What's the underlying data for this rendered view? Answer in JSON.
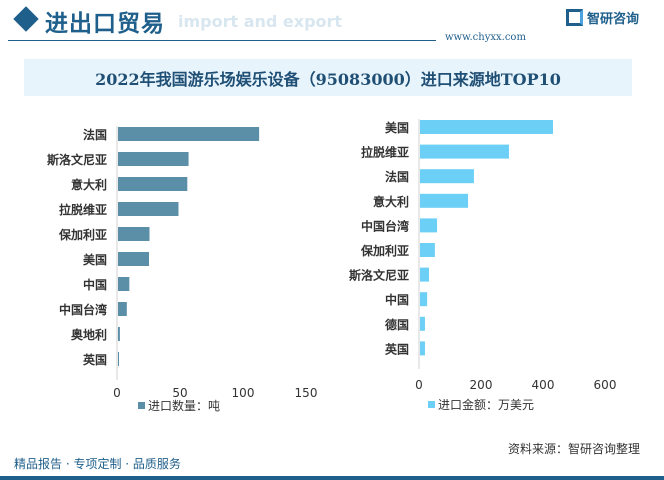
{
  "header": {
    "title": "进出口贸易",
    "subtitle": "import and export",
    "logo_text": "智研咨询",
    "url": "www.chyxx.com"
  },
  "chart_title": "2022年我国游乐场娱乐设备（95083000）进口来源地TOP10",
  "chart_data": [
    {
      "type": "bar",
      "orientation": "horizontal",
      "legend": "进口数量：吨",
      "color": "#5b8fa8",
      "xlim": [
        0,
        150
      ],
      "ticks": [
        "0",
        "50",
        "100",
        "150"
      ],
      "categories": [
        "法国",
        "斯洛文尼亚",
        "意大利",
        "拉脱维亚",
        "保加利亚",
        "美国",
        "中国",
        "中国台湾",
        "奥地利",
        "英国"
      ],
      "values": [
        112,
        56,
        55,
        48,
        25,
        24.6,
        9,
        7,
        1.5,
        0.8
      ]
    },
    {
      "type": "bar",
      "orientation": "horizontal",
      "legend": "进口金额：万美元",
      "color": "#6ccff6",
      "xlim": [
        0,
        600
      ],
      "ticks": [
        "0",
        "200",
        "400",
        "600"
      ],
      "categories": [
        "美国",
        "拉脱维亚",
        "法国",
        "意大利",
        "中国台湾",
        "保加利亚",
        "斯洛文尼亚",
        "中国",
        "德国",
        "英国"
      ],
      "values": [
        429,
        287,
        174,
        155,
        55,
        48,
        29,
        23,
        16,
        16
      ]
    }
  ],
  "footer": {
    "left": "精品报告 · 专项定制 · 品质服务",
    "source": "资料来源：智研咨询整理"
  }
}
